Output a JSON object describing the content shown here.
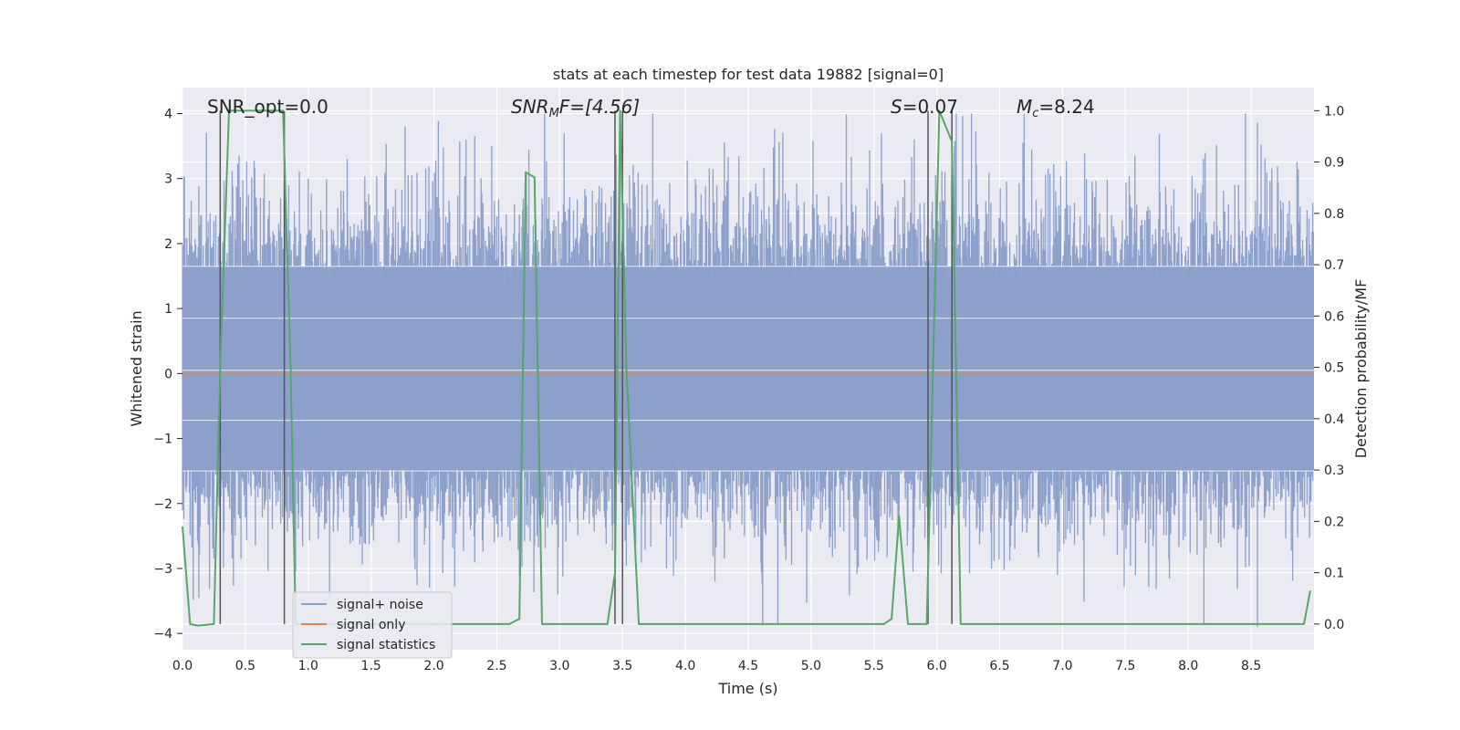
{
  "chart_data": {
    "type": "line",
    "title": "stats at each timestep for test data 19882 [signal=0]",
    "xlabel": "Time (s)",
    "ylabel": "Whitened strain",
    "y2label": "Detection probability/MF",
    "xlim": [
      0.0,
      9.0
    ],
    "ylim": [
      -4.25,
      4.4
    ],
    "y2lim": [
      -0.05,
      1.045
    ],
    "x_ticks": [
      "0.0",
      "0.5",
      "1.0",
      "1.5",
      "2.0",
      "2.5",
      "3.0",
      "3.5",
      "4.0",
      "4.5",
      "5.0",
      "5.5",
      "6.0",
      "6.5",
      "7.0",
      "7.5",
      "8.0",
      "8.5"
    ],
    "y_ticks": [
      "4",
      "3",
      "2",
      "1",
      "0",
      "−1",
      "−2",
      "−3",
      "−4"
    ],
    "y2_ticks": [
      "1.0",
      "0.9",
      "0.8",
      "0.7",
      "0.6",
      "0.5",
      "0.4",
      "0.3",
      "0.2",
      "0.1",
      "0.0"
    ],
    "grid": true,
    "legend_position": "lower-left",
    "annotations": {
      "snr_opt": "SNR_opt=0.0",
      "snr_mf_main": "SNR",
      "snr_mf_sub": "M",
      "snr_mf_rest": "F=[4.56]",
      "s_main": "S",
      "s_rest": "=0.07",
      "mc_main": "M",
      "mc_sub": "c",
      "mc_rest": "=8.24"
    },
    "series": [
      {
        "name": "signal+ noise",
        "color": "#8da0cb",
        "description_values": "dense whitened strain noise spanning roughly -3.6 to 4.0",
        "envelope_hi": 1.65,
        "envelope_lo": -1.5
      },
      {
        "name": "signal only",
        "color": "#dd8452",
        "values_constant": 0.0
      },
      {
        "name": "signal statistics",
        "color": "#55a868",
        "x": [
          0.0,
          0.06,
          0.12,
          0.25,
          0.3,
          0.37,
          0.42,
          0.8,
          0.86,
          0.9,
          1.0,
          2.6,
          2.68,
          2.73,
          2.8,
          2.86,
          3.0,
          3.25,
          3.38,
          3.44,
          3.48,
          3.53,
          3.63,
          5.58,
          5.64,
          5.7,
          5.77,
          5.92,
          5.98,
          6.02,
          6.12,
          6.19,
          6.25,
          8.86,
          8.92,
          8.97
        ],
        "values": [
          0.19,
          0.0,
          -0.003,
          0.0,
          0.5,
          1.0,
          1.0,
          1.0,
          0.5,
          0.0,
          0.0,
          0.0,
          0.01,
          0.88,
          0.87,
          0.0,
          0.0,
          0.0,
          0.0,
          0.1,
          1.0,
          0.5,
          0.0,
          0.0,
          0.01,
          0.21,
          0.0,
          0.0,
          0.6,
          1.0,
          0.94,
          0.0,
          0.0,
          0.0,
          0.0,
          0.065
        ]
      }
    ],
    "vertical_markers_x": [
      0.3,
      0.81,
      3.44,
      3.5,
      5.93,
      6.12
    ]
  },
  "colors": {
    "axes_bg": "#eaeaf2",
    "grid": "#ffffff",
    "marker_line": "#555555"
  }
}
